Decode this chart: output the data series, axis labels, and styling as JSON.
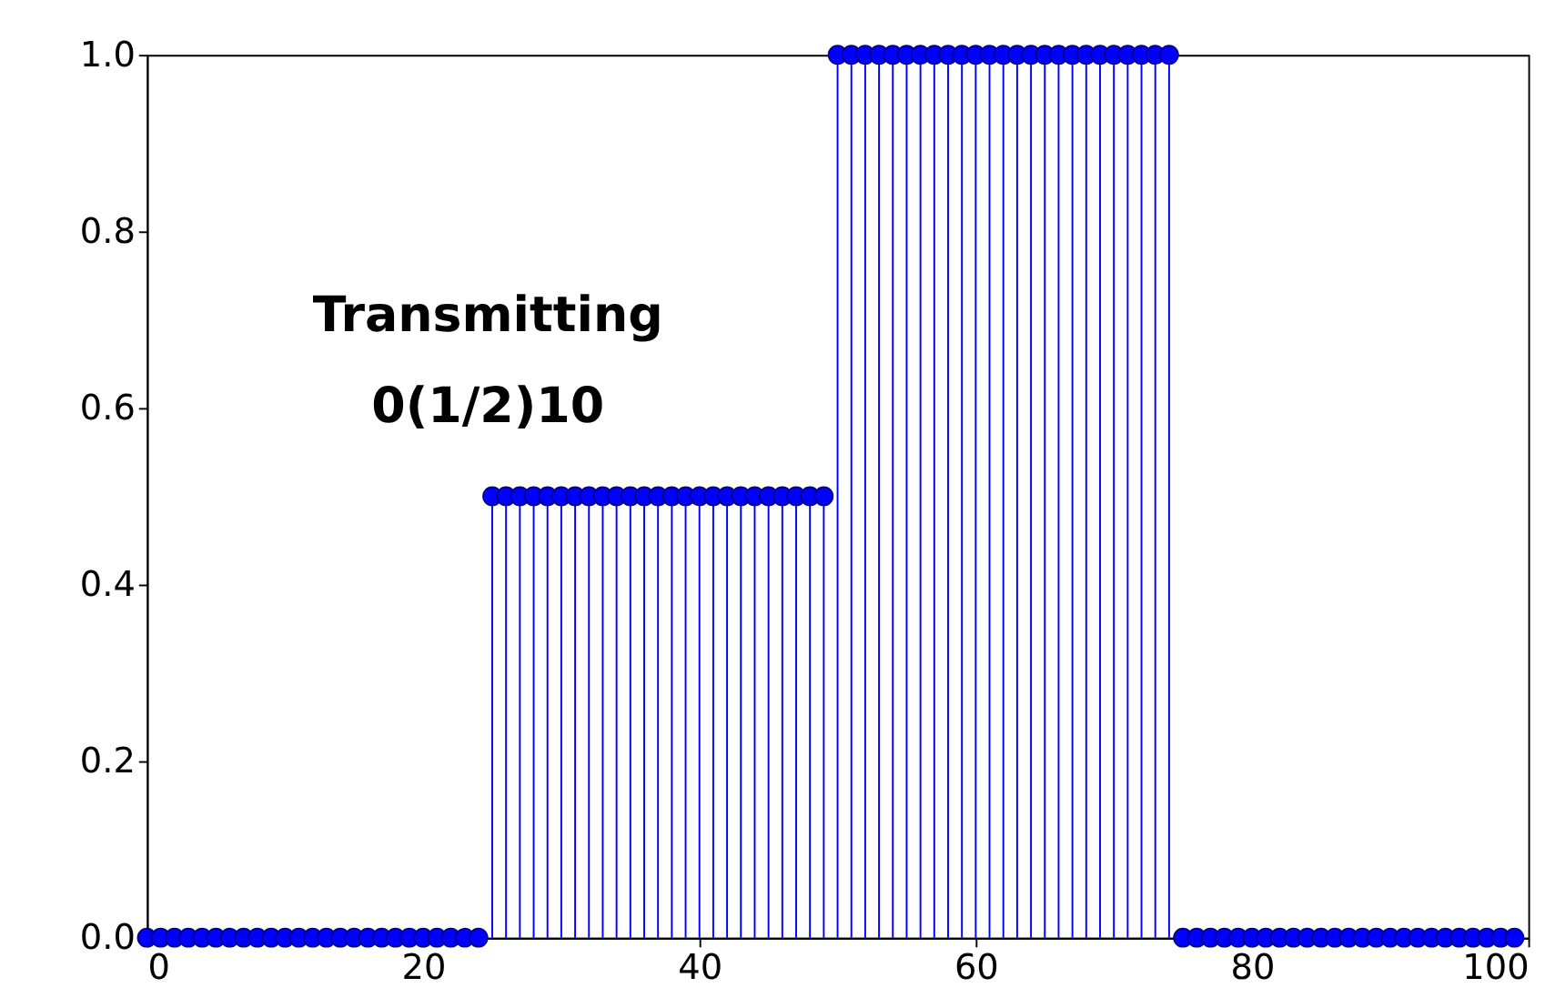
{
  "chart_data": {
    "type": "lollipop",
    "annotations": [
      "Transmitting",
      "0(1/2)10"
    ],
    "x": [
      0,
      1,
      2,
      3,
      4,
      5,
      6,
      7,
      8,
      9,
      10,
      11,
      12,
      13,
      14,
      15,
      16,
      17,
      18,
      19,
      20,
      21,
      22,
      23,
      24,
      25,
      26,
      27,
      28,
      29,
      30,
      31,
      32,
      33,
      34,
      35,
      36,
      37,
      38,
      39,
      40,
      41,
      42,
      43,
      44,
      45,
      46,
      47,
      48,
      49,
      50,
      51,
      52,
      53,
      54,
      55,
      56,
      57,
      58,
      59,
      60,
      61,
      62,
      63,
      64,
      65,
      66,
      67,
      68,
      69,
      70,
      71,
      72,
      73,
      74,
      75,
      76,
      77,
      78,
      79,
      80,
      81,
      82,
      83,
      84,
      85,
      86,
      87,
      88,
      89,
      90,
      91,
      92,
      93,
      94,
      95,
      96,
      97,
      98,
      99
    ],
    "series": [
      {
        "color": "#0000ff",
        "values": [
          0,
          0,
          0,
          0,
          0,
          0,
          0,
          0,
          0,
          0,
          0,
          0,
          0,
          0,
          0,
          0,
          0,
          0,
          0,
          0,
          0,
          0,
          0,
          0,
          0,
          0.5,
          0.5,
          0.5,
          0.5,
          0.5,
          0.5,
          0.5,
          0.5,
          0.5,
          0.5,
          0.5,
          0.5,
          0.5,
          0.5,
          0.5,
          0.5,
          0.5,
          0.5,
          0.5,
          0.5,
          0.5,
          0.5,
          0.5,
          0.5,
          0.5,
          1,
          1,
          1,
          1,
          1,
          1,
          1,
          1,
          1,
          1,
          1,
          1,
          1,
          1,
          1,
          1,
          1,
          1,
          1,
          1,
          1,
          1,
          1,
          1,
          1,
          0,
          0,
          0,
          0,
          0,
          0,
          0,
          0,
          0,
          0,
          0,
          0,
          0,
          0,
          0,
          0,
          0,
          0,
          0,
          0,
          0,
          0,
          0,
          0,
          0
        ]
      }
    ],
    "xlim": [
      0,
      100
    ],
    "xticks": [
      0,
      20,
      40,
      60,
      80,
      100
    ],
    "ylim": [
      0,
      1
    ],
    "yticks": [
      {
        "value": 0,
        "label": "0.0"
      },
      {
        "value": 0.2,
        "label": "0.2"
      },
      {
        "value": 0.4,
        "label": "0.4"
      },
      {
        "value": 0.6,
        "label": "0.6"
      },
      {
        "value": 0.8,
        "label": "0.8"
      },
      {
        "value": 1,
        "label": "1.0"
      }
    ],
    "marker": "circle",
    "grid": false
  }
}
